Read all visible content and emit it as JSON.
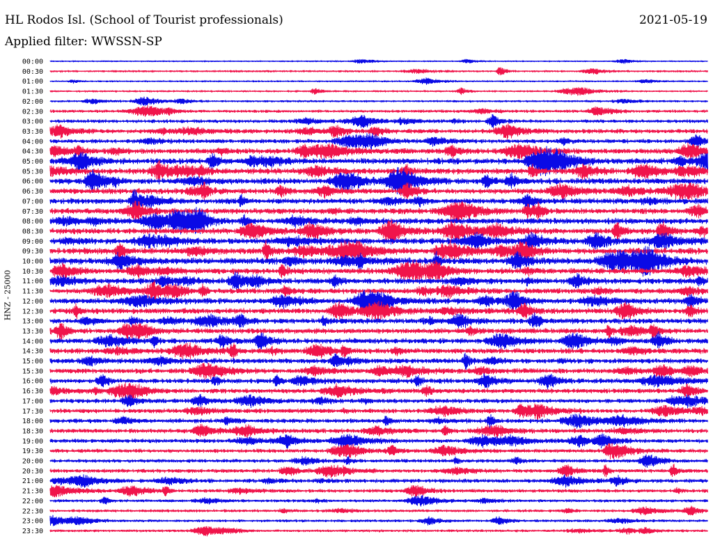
{
  "header": {
    "station": "HL Rodos Isl. (School of Tourist professionals)",
    "date": "2021-05-19",
    "filter": "Applied filter: WWSSN-SP"
  },
  "colors": {
    "trace_a": "#0a0ae6",
    "trace_b": "#f0144b",
    "text": "#000000",
    "background": "#ffffff"
  },
  "chart_data": {
    "type": "line",
    "subtype": "helicorder",
    "ylabel": "HNZ - 25000",
    "rows": [
      "00:00",
      "00:30",
      "01:00",
      "01:30",
      "02:00",
      "02:30",
      "03:00",
      "03:30",
      "04:00",
      "04:30",
      "05:00",
      "05:30",
      "06:00",
      "06:30",
      "07:00",
      "07:30",
      "08:00",
      "08:30",
      "09:00",
      "09:30",
      "10:00",
      "10:30",
      "11:00",
      "11:30",
      "12:00",
      "12:30",
      "13:00",
      "13:30",
      "14:00",
      "14:30",
      "15:00",
      "15:30",
      "16:00",
      "16:30",
      "17:00",
      "17:30",
      "18:00",
      "18:30",
      "19:00",
      "19:30",
      "20:00",
      "20:30",
      "21:00",
      "21:30",
      "22:00",
      "22:30",
      "23:00",
      "23:30"
    ],
    "row_colors": [
      "trace_a",
      "trace_b"
    ],
    "row_duration_minutes": 30,
    "relative_activity": [
      0.1,
      0.22,
      0.15,
      0.2,
      0.22,
      0.35,
      0.45,
      0.6,
      0.55,
      0.8,
      0.85,
      0.85,
      0.85,
      0.8,
      0.8,
      0.8,
      0.85,
      0.85,
      0.9,
      0.9,
      0.95,
      0.85,
      0.85,
      0.8,
      0.85,
      0.8,
      0.75,
      0.75,
      0.75,
      0.75,
      0.7,
      0.7,
      0.7,
      0.65,
      0.6,
      0.6,
      0.6,
      0.6,
      0.55,
      0.5,
      0.45,
      0.5,
      0.5,
      0.45,
      0.35,
      0.35,
      0.3,
      0.3
    ],
    "grid": false
  }
}
